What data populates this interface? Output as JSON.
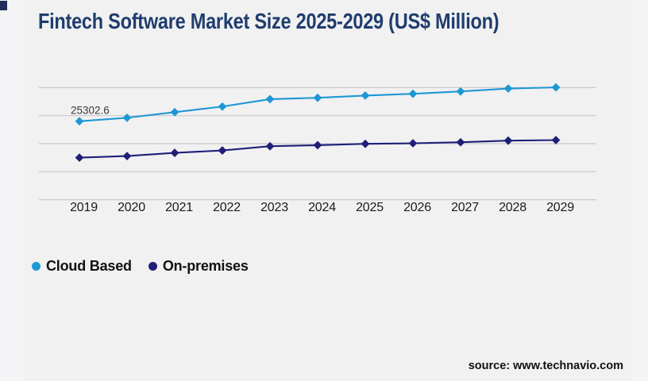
{
  "title": {
    "text": "Fintech Software Market Size 2025-2029 (US$ Million)",
    "color": "#1f3d6d"
  },
  "legend": {
    "items": [
      {
        "label": "Cloud Based",
        "color": "#1E97D4"
      },
      {
        "label": "On-premises",
        "color": "#1F1F78"
      }
    ]
  },
  "source": {
    "text": "source: www.technavio.com"
  },
  "colors": {
    "page_bg": "#f4f4f6",
    "card_bg": "#f1f1f2",
    "gridline": "#c9c9cd",
    "corner_mark": "#1f2f58",
    "axis_label": "#1a1a1a",
    "data_label": "#3a3a3a"
  },
  "chart_data": {
    "type": "line",
    "title": "Fintech Software Market Size 2025-2029 (US$ Million)",
    "categories": [
      "2019",
      "2020",
      "2021",
      "2022",
      "2023",
      "2024",
      "2025",
      "2026",
      "2027",
      "2028",
      "2029"
    ],
    "series": [
      {
        "name": "Cloud Based",
        "color": "#1E97D4",
        "marker": "diamond",
        "values": [
          25302.6,
          26430,
          28240,
          30040,
          32430,
          32870,
          33590,
          34160,
          34930,
          35860,
          36220
        ]
      },
      {
        "name": "On-premises",
        "color": "#1F1F78",
        "marker": "diamond",
        "values": [
          13570,
          14080,
          15110,
          15880,
          17250,
          17580,
          18020,
          18200,
          18530,
          19050,
          19230
        ]
      }
    ],
    "data_labels": [
      {
        "series": "Cloud Based",
        "category": "2019",
        "text": "25302.6"
      }
    ],
    "xlabel": "",
    "ylabel": "",
    "ylim": [
      0,
      36150
    ],
    "grid": {
      "horizontal_lines": 5,
      "color": "#c9c9cd"
    },
    "legend_position": "bottom-left"
  }
}
